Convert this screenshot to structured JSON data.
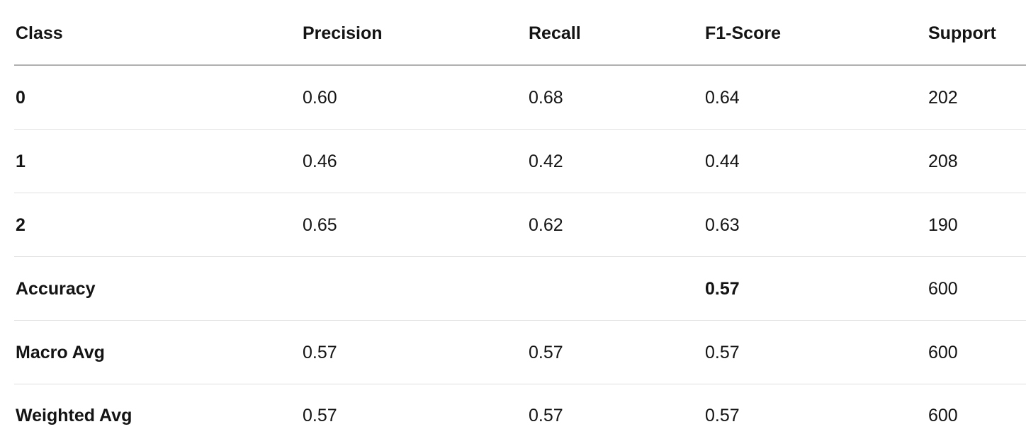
{
  "colors": {
    "background": "#ffffff",
    "text": "#141414",
    "header_border": "#b0b0b0",
    "row_border": "#e0e0e0"
  },
  "table": {
    "columns": [
      {
        "id": "class",
        "label": "Class"
      },
      {
        "id": "precision",
        "label": "Precision"
      },
      {
        "id": "recall",
        "label": "Recall"
      },
      {
        "id": "f1",
        "label": "F1-Score"
      },
      {
        "id": "support",
        "label": "Support"
      }
    ],
    "rows": [
      {
        "cells": [
          "0",
          "0.60",
          "0.68",
          "0.64",
          "202"
        ]
      },
      {
        "cells": [
          "1",
          "0.46",
          "0.42",
          "0.44",
          "208"
        ]
      },
      {
        "cells": [
          "2",
          "0.65",
          "0.62",
          "0.63",
          "190"
        ]
      },
      {
        "cells": [
          "Accuracy",
          "",
          "",
          "0.57",
          "600"
        ]
      },
      {
        "cells": [
          "Macro Avg",
          "0.57",
          "0.57",
          "0.57",
          "600"
        ]
      },
      {
        "cells": [
          "Weighted Avg",
          "0.57",
          "0.57",
          "0.57",
          "600"
        ]
      }
    ]
  },
  "chart_data": {
    "type": "table",
    "columns": [
      "Class",
      "Precision",
      "Recall",
      "F1-Score",
      "Support"
    ],
    "rows": [
      [
        "0",
        0.6,
        0.68,
        0.64,
        202
      ],
      [
        "1",
        0.46,
        0.42,
        0.44,
        208
      ],
      [
        "2",
        0.65,
        0.62,
        0.63,
        190
      ],
      [
        "Accuracy",
        null,
        null,
        0.57,
        600
      ],
      [
        "Macro Avg",
        0.57,
        0.57,
        0.57,
        600
      ],
      [
        "Weighted Avg",
        0.57,
        0.57,
        0.57,
        600
      ]
    ]
  }
}
